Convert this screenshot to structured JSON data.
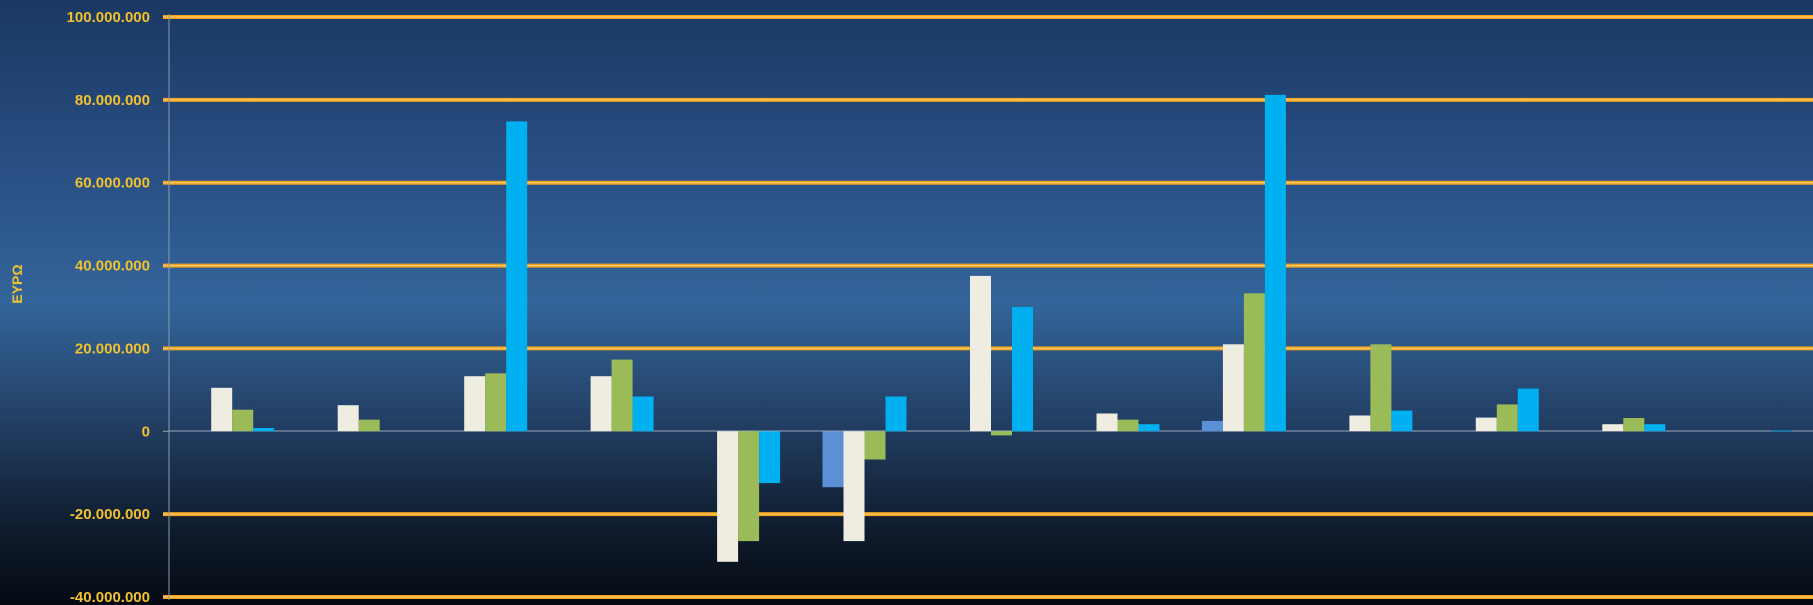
{
  "chart_data": {
    "type": "bar",
    "ylabel": "ΕΥΡΩ",
    "ylim": [
      -40000000,
      100000000
    ],
    "yticks": [
      {
        "value": 100000000,
        "label": "100.000.000"
      },
      {
        "value": 80000000,
        "label": "80.000.000"
      },
      {
        "value": 60000000,
        "label": "60.000.000"
      },
      {
        "value": 40000000,
        "label": "40.000.000"
      },
      {
        "value": 20000000,
        "label": "20.000.000"
      },
      {
        "value": 0,
        "label": "0"
      },
      {
        "value": -20000000,
        "label": "-20.000.000"
      },
      {
        "value": -40000000,
        "label": "-40.000.000"
      }
    ],
    "group_count": 13,
    "grid": true,
    "gridline_color": "#f0a21c",
    "series": [
      {
        "color": "#5b8fd6",
        "values": [
          0,
          0,
          0,
          0,
          0,
          -13500000,
          0,
          0,
          2500000,
          0,
          0,
          0,
          0
        ]
      },
      {
        "color": "#efece2",
        "values": [
          10500000,
          6300000,
          13300000,
          13300000,
          -31500000,
          -26500000,
          37500000,
          4300000,
          21000000,
          3800000,
          3300000,
          1700000,
          0
        ]
      },
      {
        "color": "#9bbb59",
        "values": [
          5200000,
          2800000,
          14000000,
          17300000,
          -26500000,
          -6800000,
          -1000000,
          2800000,
          33300000,
          21000000,
          6500000,
          3200000,
          0
        ]
      },
      {
        "color": "#00b0f0",
        "values": [
          800000,
          0,
          74800000,
          8400000,
          -12500000,
          8400000,
          30000000,
          1700000,
          81200000,
          5000000,
          10300000,
          1700000,
          200000
        ]
      }
    ]
  }
}
